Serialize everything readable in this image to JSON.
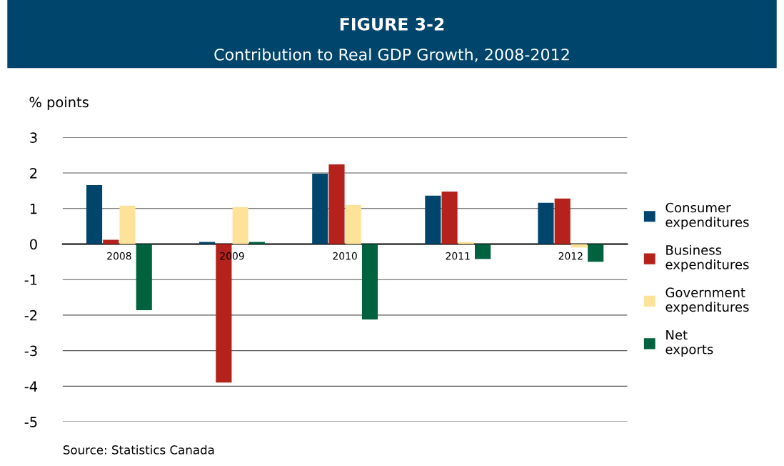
{
  "chart_data": {
    "type": "bar",
    "title": "FIGURE 3-2",
    "subtitle": "Contribution to Real GDP Growth, 2008-2012",
    "ylabel": "% points",
    "categories": [
      "2008",
      "2009",
      "2010",
      "2011",
      "2012"
    ],
    "series": [
      {
        "name": "Consumer expenditures",
        "color": "#00456b",
        "values": [
          1.66,
          0.06,
          1.98,
          1.36,
          1.16
        ]
      },
      {
        "name": "Business expenditures",
        "color": "#b5221b",
        "values": [
          0.12,
          -3.9,
          2.24,
          1.48,
          1.28
        ]
      },
      {
        "name": "Government expenditures",
        "color": "#fde39a",
        "values": [
          1.08,
          1.04,
          1.1,
          0.06,
          -0.1
        ]
      },
      {
        "name": "Net exports",
        "color": "#00623f",
        "values": [
          -1.86,
          0.06,
          -2.12,
          -0.42,
          -0.5
        ]
      }
    ],
    "ylim": [
      -5,
      3
    ],
    "yticks": [
      -5,
      -4,
      -3,
      -2,
      -1,
      0,
      1,
      2,
      3
    ],
    "grid": "y",
    "legend": "right",
    "annotations": [
      "Source: Statistics Canada"
    ]
  }
}
